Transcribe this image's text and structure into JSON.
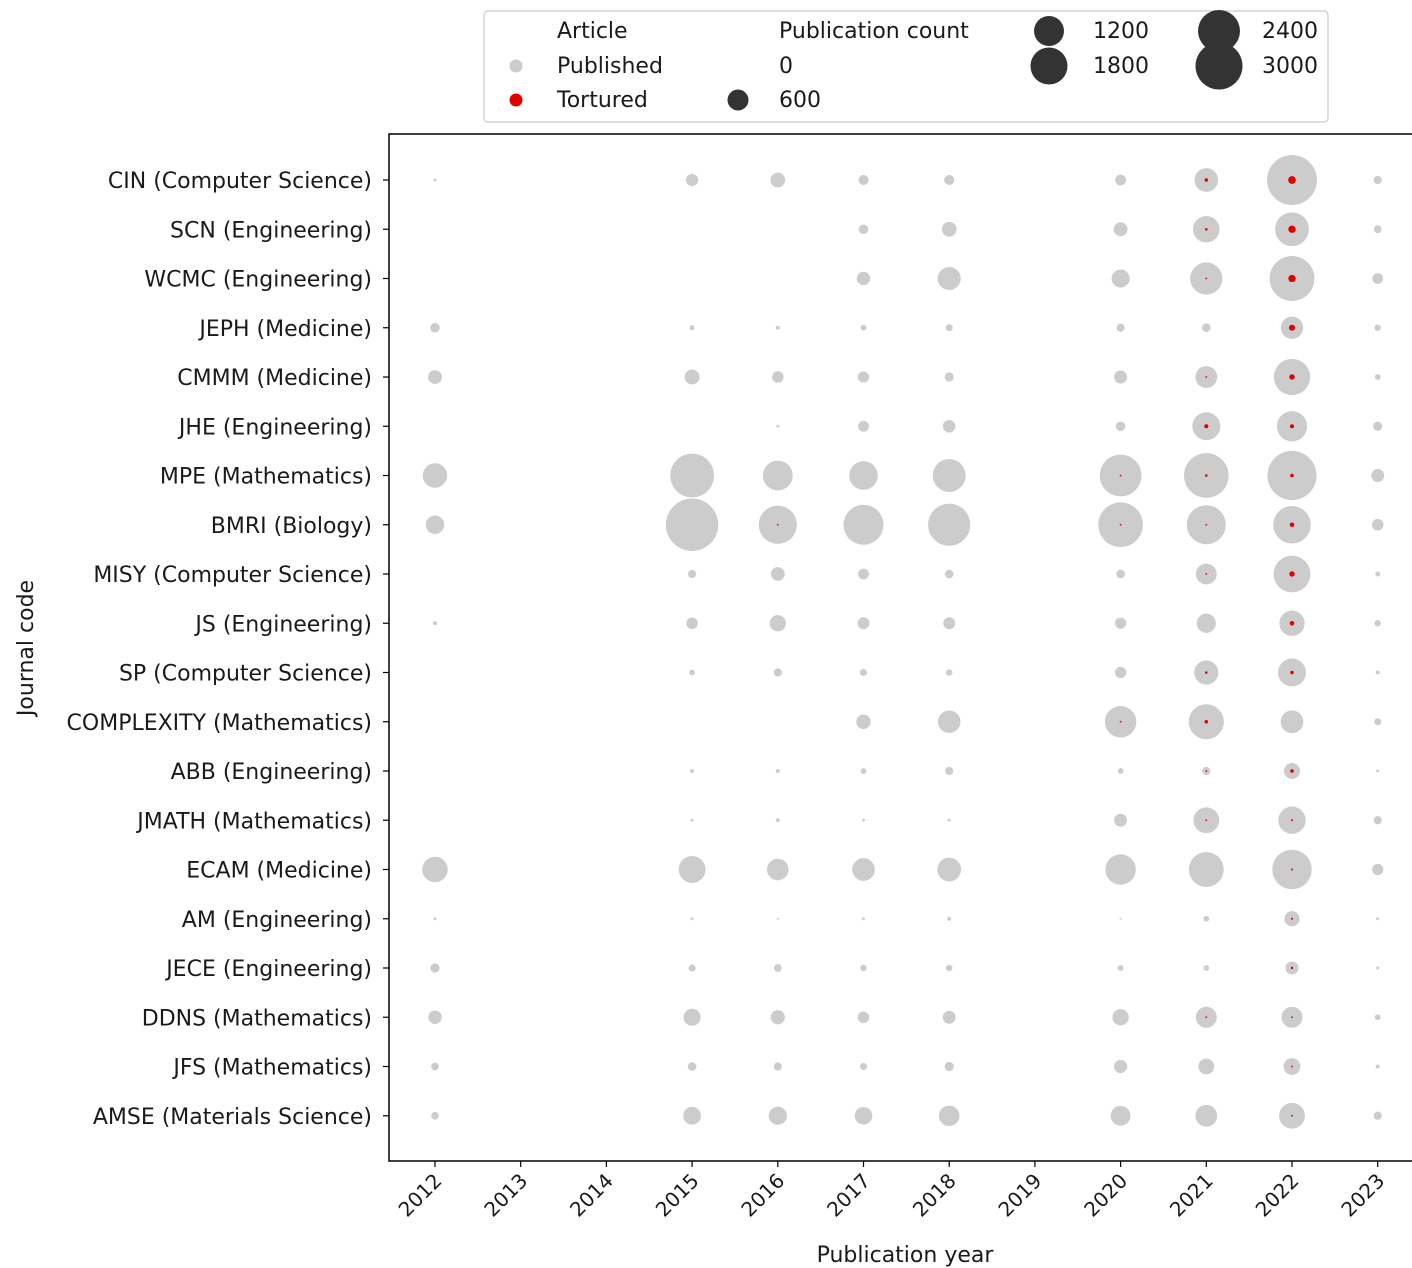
{
  "chart_data": {
    "type": "scatter",
    "xlabel": "Publication year",
    "ylabel": "Journal code",
    "years": [
      "2012",
      "2013",
      "2014",
      "2015",
      "2016",
      "2017",
      "2018",
      "2019",
      "2020",
      "2021",
      "2022",
      "2023"
    ],
    "journals": [
      "CIN (Computer Science)",
      "SCN (Engineering)",
      "WCMC (Engineering)",
      "JEPH (Medicine)",
      "CMMM (Medicine)",
      "JHE (Engineering)",
      "MPE (Mathematics)",
      "BMRI (Biology)",
      "MISY (Computer Science)",
      "JS (Engineering)",
      "SP (Computer Science)",
      "COMPLEXITY (Mathematics)",
      "ABB (Engineering)",
      "JMATH (Mathematics)",
      "ECAM (Medicine)",
      "AM (Engineering)",
      "JECE (Engineering)",
      "DDNS (Mathematics)",
      "JFS (Mathematics)",
      "AMSE (Materials Science)"
    ],
    "legend": {
      "article_title": "Article",
      "article_entries": [
        {
          "label": "Published",
          "color": "#cccccc"
        },
        {
          "label": "Tortured",
          "color": "#e00000"
        }
      ],
      "size_title": "Publication count",
      "size_entries": [
        "0",
        "600",
        "1200",
        "1800",
        "2400",
        "3000"
      ],
      "placement": "top-center"
    },
    "colors": {
      "published": "#cccccc",
      "tortured": "#e00000",
      "legend_size_marker": "#333333"
    },
    "size_max_count": 3000,
    "series": [
      {
        "name": "Published",
        "points": [
          {
            "journal": "CIN (Computer Science)",
            "counts": {
              "2012": 10,
              "2015": 180,
              "2016": 260,
              "2017": 120,
              "2018": 120,
              "2020": 140,
              "2021": 670,
              "2022": 3000,
              "2023": 80
            }
          },
          {
            "journal": "SCN (Engineering)",
            "counts": {
              "2017": 110,
              "2018": 260,
              "2020": 230,
              "2021": 850,
              "2022": 1370,
              "2023": 70
            }
          },
          {
            "journal": "WCMC (Engineering)",
            "counts": {
              "2017": 220,
              "2018": 640,
              "2020": 390,
              "2021": 1250,
              "2022": 2420,
              "2023": 140
            }
          },
          {
            "journal": "JEPH (Medicine)",
            "counts": {
              "2012": 110,
              "2015": 30,
              "2016": 20,
              "2017": 40,
              "2018": 60,
              "2020": 80,
              "2021": 90,
              "2022": 600,
              "2023": 50
            }
          },
          {
            "journal": "CMMM (Medicine)",
            "counts": {
              "2012": 230,
              "2015": 270,
              "2016": 160,
              "2017": 150,
              "2018": 100,
              "2020": 200,
              "2021": 570,
              "2022": 1580,
              "2023": 40
            }
          },
          {
            "journal": "JHE (Engineering)",
            "counts": {
              "2016": 10,
              "2017": 140,
              "2018": 190,
              "2020": 110,
              "2021": 940,
              "2022": 1100,
              "2023": 100
            }
          },
          {
            "journal": "MPE (Mathematics)",
            "counts": {
              "2012": 720,
              "2015": 2300,
              "2016": 1070,
              "2017": 980,
              "2018": 1300,
              "2020": 2100,
              "2021": 2400,
              "2022": 2900,
              "2023": 200
            }
          },
          {
            "journal": "BMRI (Biology)",
            "counts": {
              "2012": 410,
              "2015": 3300,
              "2016": 1750,
              "2017": 1920,
              "2018": 2140,
              "2020": 2400,
              "2021": 1830,
              "2022": 1690,
              "2023": 160
            }
          },
          {
            "journal": "MISY (Computer Science)",
            "counts": {
              "2015": 80,
              "2016": 230,
              "2017": 140,
              "2018": 90,
              "2020": 90,
              "2021": 520,
              "2022": 1630,
              "2023": 30
            }
          },
          {
            "journal": "JS (Engineering)",
            "counts": {
              "2012": 20,
              "2015": 160,
              "2016": 320,
              "2017": 170,
              "2018": 170,
              "2020": 150,
              "2021": 440,
              "2022": 770,
              "2023": 50
            }
          },
          {
            "journal": "SP (Computer Science)",
            "counts": {
              "2015": 40,
              "2016": 80,
              "2017": 60,
              "2018": 50,
              "2020": 150,
              "2021": 700,
              "2022": 940,
              "2023": 20
            }
          },
          {
            "journal": "COMPLEXITY (Mathematics)",
            "counts": {
              "2017": 250,
              "2018": 610,
              "2020": 1190,
              "2021": 1480,
              "2022": 620,
              "2023": 60
            }
          },
          {
            "journal": "ABB (Engineering)",
            "counts": {
              "2015": 20,
              "2016": 20,
              "2017": 40,
              "2018": 80,
              "2020": 40,
              "2021": 80,
              "2022": 310,
              "2023": 10
            }
          },
          {
            "journal": "JMATH (Mathematics)",
            "counts": {
              "2015": 10,
              "2016": 20,
              "2017": 10,
              "2018": 10,
              "2020": 200,
              "2021": 800,
              "2022": 900,
              "2023": 80
            }
          },
          {
            "journal": "ECAM (Medicine)",
            "counts": {
              "2012": 780,
              "2015": 870,
              "2016": 560,
              "2017": 620,
              "2018": 680,
              "2020": 1110,
              "2021": 1460,
              "2022": 1870,
              "2023": 150
            }
          },
          {
            "journal": "AM (Engineering)",
            "counts": {
              "2012": 10,
              "2015": 10,
              "2016": 5,
              "2017": 10,
              "2018": 20,
              "2020": 5,
              "2021": 40,
              "2022": 280,
              "2023": 10
            }
          },
          {
            "journal": "JECE (Engineering)",
            "counts": {
              "2012": 100,
              "2015": 60,
              "2016": 70,
              "2017": 50,
              "2018": 50,
              "2020": 40,
              "2021": 40,
              "2022": 200,
              "2023": 10
            }
          },
          {
            "journal": "DDNS (Mathematics)",
            "counts": {
              "2012": 220,
              "2015": 350,
              "2016": 240,
              "2017": 160,
              "2018": 200,
              "2020": 320,
              "2021": 530,
              "2022": 530,
              "2023": 40
            }
          },
          {
            "journal": "JFS (Mathematics)",
            "counts": {
              "2012": 70,
              "2015": 90,
              "2016": 80,
              "2017": 60,
              "2018": 100,
              "2020": 210,
              "2021": 300,
              "2022": 340,
              "2023": 20
            }
          },
          {
            "journal": "AMSE (Materials Science)",
            "counts": {
              "2012": 70,
              "2015": 380,
              "2016": 400,
              "2017": 370,
              "2018": 510,
              "2020": 470,
              "2021": 570,
              "2022": 800,
              "2023": 80
            }
          }
        ]
      },
      {
        "name": "Tortured",
        "points": [
          {
            "journal": "CIN (Computer Science)",
            "counts": {
              "2021": 15,
              "2022": 70
            }
          },
          {
            "journal": "SCN (Engineering)",
            "counts": {
              "2021": 8,
              "2022": 65
            }
          },
          {
            "journal": "WCMC (Engineering)",
            "counts": {
              "2021": 4,
              "2022": 65
            }
          },
          {
            "journal": "JEPH (Medicine)",
            "counts": {
              "2022": 45
            }
          },
          {
            "journal": "CMMM (Medicine)",
            "counts": {
              "2021": 3,
              "2022": 35
            }
          },
          {
            "journal": "JHE (Engineering)",
            "counts": {
              "2021": 20,
              "2022": 20
            }
          },
          {
            "journal": "MPE (Mathematics)",
            "counts": {
              "2020": 1,
              "2021": 8,
              "2022": 15
            }
          },
          {
            "journal": "BMRI (Biology)",
            "counts": {
              "2016": 1,
              "2020": 1,
              "2021": 1,
              "2022": 25
            }
          },
          {
            "journal": "MISY (Computer Science)",
            "counts": {
              "2021": 1,
              "2022": 35
            }
          },
          {
            "journal": "JS (Engineering)",
            "counts": {
              "2022": 25
            }
          },
          {
            "journal": "SP (Computer Science)",
            "counts": {
              "2021": 8,
              "2022": 15
            }
          },
          {
            "journal": "COMPLEXITY (Mathematics)",
            "counts": {
              "2020": 3,
              "2021": 15
            }
          },
          {
            "journal": "ABB (Engineering)",
            "counts": {
              "2021": 3,
              "2022": 15
            }
          },
          {
            "journal": "JMATH (Mathematics)",
            "counts": {
              "2021": 2,
              "2022": 5
            }
          },
          {
            "journal": "ECAM (Medicine)",
            "counts": {
              "2022": 5
            }
          },
          {
            "journal": "AM (Engineering)",
            "counts": {
              "2022": 5
            }
          },
          {
            "journal": "JECE (Engineering)",
            "counts": {
              "2022": 7
            }
          },
          {
            "journal": "DDNS (Mathematics)",
            "counts": {
              "2021": 3,
              "2022": 3
            }
          },
          {
            "journal": "JFS (Mathematics)",
            "counts": {
              "2022": 3
            }
          },
          {
            "journal": "AMSE (Materials Science)",
            "counts": {
              "2022": 3
            }
          }
        ]
      }
    ]
  }
}
